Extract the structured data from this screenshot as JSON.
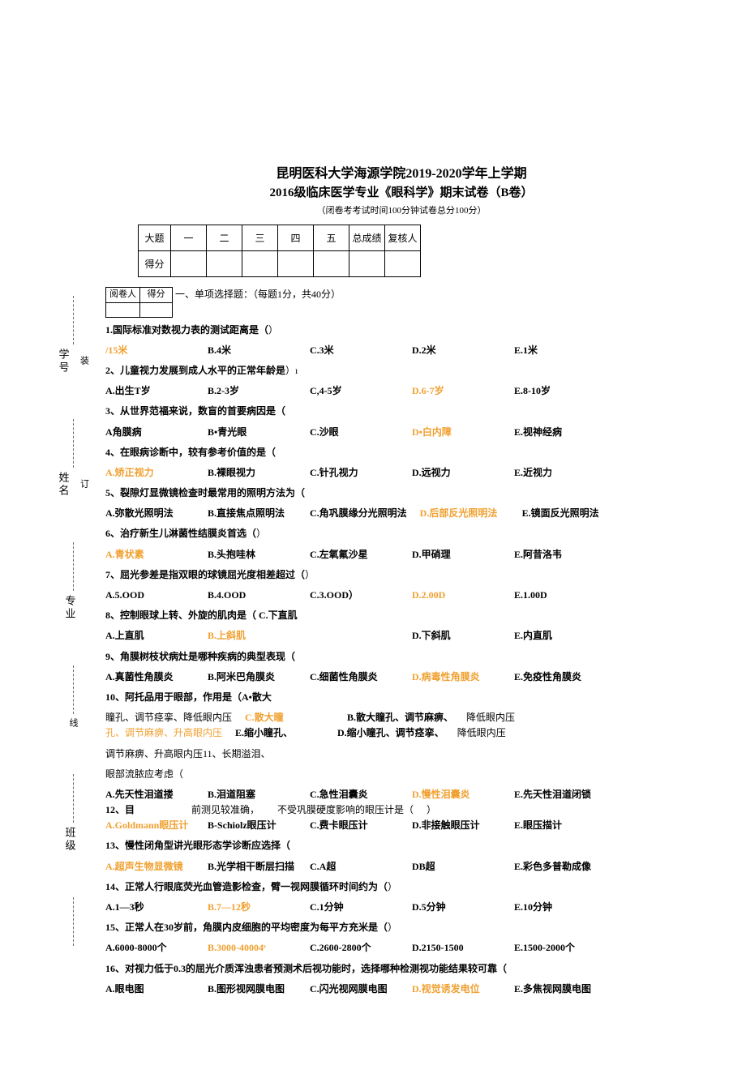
{
  "header": {
    "line1": "昆明医科大学海源学院2019-2020学年上学期",
    "line2": "2016级临床医学专业《眼科学》期末试卷（B卷）",
    "sub": "（闭卷考考试时间100分钟试卷总分100分）"
  },
  "score_table": {
    "r1": [
      "大题",
      "一",
      "二",
      "三",
      "四",
      "五",
      "总成绩",
      "复核人"
    ],
    "r2": [
      "得分",
      "",
      "",
      "",
      "",
      "",
      "",
      ""
    ]
  },
  "marker_box": {
    "c1": "阅卷人",
    "c2": "得分"
  },
  "section1_title": "一、单项选择题：（每题1分，共40分）",
  "side": {
    "zhuang": "装",
    "ding": "订",
    "xian": "线",
    "xuehao": "学号",
    "xingming": "姓名",
    "zhuanye": "专业",
    "banji": "班级"
  },
  "q": [
    {
      "stem": "1.国际标准对数视力表的测试距离是（",
      "stem_close": "）",
      "opts": [
        {
          "k": "/15米",
          "ans": true
        },
        {
          "k": "B.4米"
        },
        {
          "k": "C.3米"
        },
        {
          "k": "D.2米"
        },
        {
          "k": "E.1米"
        }
      ]
    },
    {
      "stem": "2、儿童视力发展到成人水平的正常年龄是",
      "stem_close": "）ı",
      "opts": [
        {
          "k": "A.出生T岁"
        },
        {
          "k": "B.2-3岁"
        },
        {
          "k": "C,4-5岁"
        },
        {
          "k": "D.6-7岁",
          "ans": true
        },
        {
          "k": "E.8-10岁"
        }
      ]
    },
    {
      "stem": "3、从世界范福来说，数盲的首要病因是（",
      "stem_close": "",
      "opts": [
        {
          "k": "A角膜病"
        },
        {
          "k": "B•青光眼"
        },
        {
          "k": "C.沙眼"
        },
        {
          "k": "D•白内障",
          "ans": true
        },
        {
          "k": "E.视神经病"
        }
      ]
    },
    {
      "stem": "4、在眼病诊断中，较有参考价值的是（",
      "stem_close": "",
      "opts": [
        {
          "k": "A.矫正视力",
          "ans": true
        },
        {
          "k": "B.裸眼视力"
        },
        {
          "k": "C.针孔视力"
        },
        {
          "k": "D.远视力"
        },
        {
          "k": "E.近视力"
        }
      ]
    },
    {
      "stem": "5、裂隙灯显微镜检查时最常用的照明方法为（",
      "stem_close": "",
      "opts": [
        {
          "k": "A.弥散光照明法"
        },
        {
          "k": "B.直接焦点照明法"
        },
        {
          "k": "C.角巩膜缘分光照明法"
        },
        {
          "k": "D.后部反光照明法",
          "ans": true
        },
        {
          "k": "E.镜面反光照明法"
        }
      ]
    },
    {
      "stem": "6、治疗新生儿淋菌性结膜炎首选（",
      "stem_close": "）",
      "opts": [
        {
          "k": "A.青状素",
          "ans": true
        },
        {
          "k": "B.头抱哇林"
        },
        {
          "k": "C.左氧氟沙星"
        },
        {
          "k": "D.甲硝理"
        },
        {
          "k": "E.阿昔洛韦"
        }
      ]
    },
    {
      "stem": "7、屈光参差是指双眼的球镜屈光度相差超过（",
      "stem_close": "）",
      "opts": [
        {
          "k": "A.5.OOD"
        },
        {
          "k": "B.4.OOD"
        },
        {
          "k": "C.3.OOD）"
        },
        {
          "k": "D.2.00D",
          "ans": true
        },
        {
          "k": "E.1.00D"
        }
      ]
    },
    {
      "stem": "8、控制眼球上转、外旋的肌肉是（ C.下直肌",
      "stem_close": "",
      "opts": [
        {
          "k": "A.上直肌"
        },
        {
          "k": "B.上斜肌",
          "ans": true
        },
        {
          "k": ""
        },
        {
          "k": "D.下斜肌"
        },
        {
          "k": "E.内直肌"
        }
      ]
    },
    {
      "stem": "9、角膜树枝状病灶是哪种疾病的典型表现（",
      "stem_close": "",
      "opts": [
        {
          "k": "A.真菌性角膜炎"
        },
        {
          "k": "B.阿米巴角膜炎"
        },
        {
          "k": "C.细菌性角膜炎"
        },
        {
          "k": "D.病毒性角膜炎",
          "ans": true
        },
        {
          "k": "E.免疫性角膜炎"
        }
      ]
    }
  ],
  "q10": {
    "stem": "10、阿托品用于眼部，作用是（A•散大",
    "l1a": "瞳孔、调节痉挛、降低眼内压",
    "l1b": "C.散大瞳",
    "l1c": "B.散大瞳孔、调节麻痹、",
    "l1d": "降低眼内压",
    "l2a": "孔、调节麻痹、升高眼内压",
    "l2b": "E.缩小瞳孔、",
    "l2c": "D.缩小瞳孔、调节痉挛、",
    "l2d": "降低眼内压",
    "l3": "调节麻痹、升高眼内压11、长期溢泪、",
    "l4": "眼部流脓应考虑（"
  },
  "q11": {
    "opts": [
      {
        "k": "A.先天性泪道搂"
      },
      {
        "k": "B.泪道阻塞"
      },
      {
        "k": "C.急性泪囊炎"
      },
      {
        "k": "D.慢性泪囊炎",
        "ans": true
      },
      {
        "k": "E.先天性泪道闭锁"
      }
    ]
  },
  "q12": {
    "stem": "12、目",
    "l2": "前测见较准确，",
    "l3": "不受巩膜硬度影响的眼压计是（",
    "close": "）",
    "opts": [
      {
        "k": "A.Goldmann眼压计",
        "ans": true
      },
      {
        "k": "B-Schiolz眼压计"
      },
      {
        "k": "C.费卡眼压计"
      },
      {
        "k": "D.非接触眼压计"
      },
      {
        "k": "E.眼压描计"
      }
    ]
  },
  "q13": {
    "stem": "13、慢性闭角型讲光眼形态学诊断应选择（",
    "opts": [
      {
        "k": "A.超声生物显微镜",
        "ans": true
      },
      {
        "k": "B.光学相干断层扫描"
      },
      {
        "k": "C.A超"
      },
      {
        "k": "DB超"
      },
      {
        "k": "E.彩色多普勒成像"
      }
    ]
  },
  "q14": {
    "stem": "14、正常人行眼底荧光血管造影检查，臂一视网膜循环时间约为（",
    "close": "）",
    "opts": [
      {
        "k": "A.1—3秒"
      },
      {
        "k": "B.7—12秒",
        "ans": true
      },
      {
        "k": "C.1分钟"
      },
      {
        "k": "D.5分钟"
      },
      {
        "k": "E.10分钟"
      }
    ]
  },
  "q15": {
    "stem": "15、正常人在30岁前，角膜内皮细胞的平均密度为每平方充米是（",
    "close": "）",
    "opts": [
      {
        "k": "A.6000-8000个"
      },
      {
        "k": "B.3000-40004ˢ",
        "ans": true
      },
      {
        "k": "C.2600-2800个"
      },
      {
        "k": "D.2150-1500"
      },
      {
        "k": "E.1500-2000个"
      }
    ]
  },
  "q16": {
    "stem": "16、对视力低于0.3的屈光介质浑浊患者预测术后视功能时，选择哪种检测视功能结果较可靠（",
    "close": "",
    "opts": [
      {
        "k": "A.眼电图"
      },
      {
        "k": "B.图形视网膜电图"
      },
      {
        "k": "C.闪光视网膜电图"
      },
      {
        "k": "D.视觉诱发电位",
        "ans": true
      },
      {
        "k": "E.多焦视网膜电图"
      }
    ]
  }
}
